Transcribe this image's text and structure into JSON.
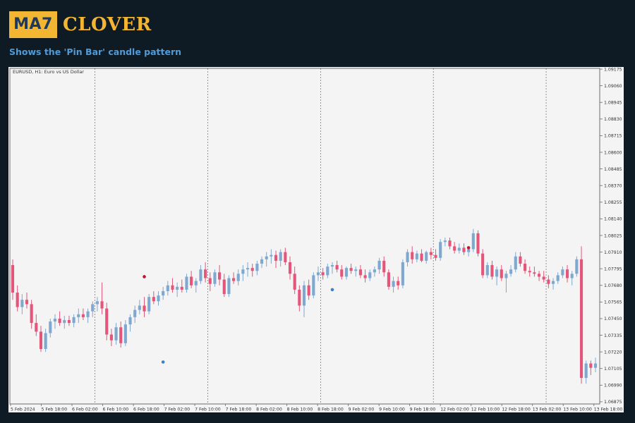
{
  "header": {
    "logo_badge": "MA7",
    "logo_word": "CLOVER"
  },
  "subtitle": "Shows the 'Pin Bar' candle pattern",
  "colors": {
    "background": "#0f1b24",
    "chart_bg": "#f4f4f4",
    "bull": "#7ea8cf",
    "bear": "#e3557a",
    "pin_top": "#c0152f",
    "pin_bottom": "#3b80c2",
    "grid": "#555555",
    "logo": "#f2b632",
    "subtitle": "#4f9bd8"
  },
  "chart_data": {
    "type": "candlestick",
    "symbol_label": "EURUSD, H1:  Euro vs US Dollar",
    "ylim": [
      1.0686,
      1.0918
    ],
    "y_ticks": [
      "1.09175",
      "1.09060",
      "1.08945",
      "1.08830",
      "1.08715",
      "1.08600",
      "1.08485",
      "1.08370",
      "1.08255",
      "1.08140",
      "1.08025",
      "1.07910",
      "1.07795",
      "1.07680",
      "1.07565",
      "1.07450",
      "1.07335",
      "1.07220",
      "1.07105",
      "1.06990",
      "1.06875"
    ],
    "x_ticks": [
      "5 Feb 2024",
      "5 Feb 18:00",
      "6 Feb 02:00",
      "6 Feb 10:00",
      "6 Feb 18:00",
      "7 Feb 02:00",
      "7 Feb 10:00",
      "7 Feb 18:00",
      "8 Feb 02:00",
      "8 Feb 10:00",
      "8 Feb 18:00",
      "9 Feb 02:00",
      "9 Feb 10:00",
      "9 Feb 18:00",
      "12 Feb 02:00",
      "12 Feb 10:00",
      "12 Feb 18:00",
      "13 Feb 02:00",
      "13 Feb 10:00",
      "13 Feb 18:00"
    ],
    "grid": "vertical dashed at day separators",
    "candles": [
      [
        1.0782,
        1.0786,
        1.0758,
        1.0763
      ],
      [
        1.0763,
        1.0768,
        1.075,
        1.0753
      ],
      [
        1.0753,
        1.0762,
        1.0748,
        1.0758
      ],
      [
        1.0758,
        1.0763,
        1.0752,
        1.0755
      ],
      [
        1.0755,
        1.0758,
        1.0738,
        1.0742
      ],
      [
        1.0742,
        1.0748,
        1.0733,
        1.0736
      ],
      [
        1.0736,
        1.074,
        1.0722,
        1.0724
      ],
      [
        1.0724,
        1.0738,
        1.0722,
        1.0735
      ],
      [
        1.0735,
        1.0745,
        1.0732,
        1.0743
      ],
      [
        1.0743,
        1.0748,
        1.0738,
        1.0745
      ],
      [
        1.0745,
        1.075,
        1.074,
        1.0742
      ],
      [
        1.0742,
        1.0747,
        1.0738,
        1.0744
      ],
      [
        1.0744,
        1.0747,
        1.074,
        1.0742
      ],
      [
        1.0742,
        1.0748,
        1.0739,
        1.0746
      ],
      [
        1.0746,
        1.0752,
        1.0742,
        1.0748
      ],
      [
        1.0748,
        1.0752,
        1.0744,
        1.0746
      ],
      [
        1.0746,
        1.0752,
        1.0742,
        1.075
      ],
      [
        1.075,
        1.0757,
        1.0746,
        1.0755
      ],
      [
        1.0755,
        1.076,
        1.075,
        1.0757
      ],
      [
        1.0757,
        1.077,
        1.0748,
        1.0752
      ],
      [
        1.0752,
        1.0756,
        1.073,
        1.0734
      ],
      [
        1.0734,
        1.0738,
        1.0726,
        1.073
      ],
      [
        1.073,
        1.0742,
        1.0727,
        1.0739
      ],
      [
        1.0739,
        1.0743,
        1.0725,
        1.0728
      ],
      [
        1.0728,
        1.0744,
        1.0726,
        1.0741
      ],
      [
        1.0741,
        1.0748,
        1.0736,
        1.0746
      ],
      [
        1.0746,
        1.0754,
        1.0742,
        1.0751
      ],
      [
        1.0751,
        1.0758,
        1.0748,
        1.0754
      ],
      [
        1.0754,
        1.076,
        1.0746,
        1.075
      ],
      [
        1.075,
        1.0762,
        1.0748,
        1.076
      ],
      [
        1.076,
        1.0764,
        1.0755,
        1.0757
      ],
      [
        1.0757,
        1.0764,
        1.0754,
        1.0761
      ],
      [
        1.0761,
        1.0767,
        1.0758,
        1.0764
      ],
      [
        1.0764,
        1.0771,
        1.0761,
        1.0768
      ],
      [
        1.0768,
        1.0773,
        1.0763,
        1.0765
      ],
      [
        1.0765,
        1.077,
        1.076,
        1.0767
      ],
      [
        1.0767,
        1.0772,
        1.0763,
        1.0765
      ],
      [
        1.0765,
        1.0776,
        1.0763,
        1.0774
      ],
      [
        1.0774,
        1.0778,
        1.0766,
        1.0768
      ],
      [
        1.0768,
        1.0773,
        1.0763,
        1.0771
      ],
      [
        1.0771,
        1.0782,
        1.0769,
        1.0779
      ],
      [
        1.0779,
        1.0784,
        1.077,
        1.0773
      ],
      [
        1.0773,
        1.0777,
        1.0764,
        1.0769
      ],
      [
        1.0769,
        1.0779,
        1.0767,
        1.0777
      ],
      [
        1.0777,
        1.0782,
        1.0768,
        1.0772
      ],
      [
        1.0772,
        1.0776,
        1.076,
        1.0762
      ],
      [
        1.0762,
        1.0775,
        1.076,
        1.0773
      ],
      [
        1.0773,
        1.0777,
        1.0769,
        1.0771
      ],
      [
        1.0771,
        1.0779,
        1.0768,
        1.0776
      ],
      [
        1.0776,
        1.0782,
        1.0771,
        1.0779
      ],
      [
        1.0779,
        1.0784,
        1.0774,
        1.078
      ],
      [
        1.078,
        1.0783,
        1.0774,
        1.0778
      ],
      [
        1.0778,
        1.0785,
        1.0775,
        1.0783
      ],
      [
        1.0783,
        1.0788,
        1.078,
        1.0786
      ],
      [
        1.0786,
        1.0791,
        1.0781,
        1.0788
      ],
      [
        1.0788,
        1.0793,
        1.0783,
        1.0789
      ],
      [
        1.0789,
        1.0792,
        1.078,
        1.0785
      ],
      [
        1.0785,
        1.0793,
        1.0781,
        1.0791
      ],
      [
        1.0791,
        1.0794,
        1.0782,
        1.0784
      ],
      [
        1.0784,
        1.0788,
        1.0772,
        1.0776
      ],
      [
        1.0776,
        1.0781,
        1.0762,
        1.0765
      ],
      [
        1.0765,
        1.0768,
        1.075,
        1.0754
      ],
      [
        1.0754,
        1.0771,
        1.0746,
        1.0768
      ],
      [
        1.0768,
        1.0772,
        1.0758,
        1.0761
      ],
      [
        1.0761,
        1.0777,
        1.0759,
        1.0775
      ],
      [
        1.0775,
        1.0781,
        1.0771,
        1.0777
      ],
      [
        1.0777,
        1.078,
        1.0772,
        1.0775
      ],
      [
        1.0775,
        1.0783,
        1.0773,
        1.0781
      ],
      [
        1.0781,
        1.0784,
        1.0776,
        1.0782
      ],
      [
        1.0782,
        1.0785,
        1.0777,
        1.0779
      ],
      [
        1.0779,
        1.0782,
        1.0772,
        1.0774
      ],
      [
        1.0774,
        1.0781,
        1.0772,
        1.078
      ],
      [
        1.078,
        1.0783,
        1.0776,
        1.0778
      ],
      [
        1.0778,
        1.0781,
        1.0774,
        1.0779
      ],
      [
        1.0779,
        1.0782,
        1.0773,
        1.0775
      ],
      [
        1.0775,
        1.0779,
        1.077,
        1.0773
      ],
      [
        1.0773,
        1.0779,
        1.0771,
        1.0777
      ],
      [
        1.0777,
        1.0781,
        1.0774,
        1.0779
      ],
      [
        1.0779,
        1.0787,
        1.0776,
        1.0785
      ],
      [
        1.0785,
        1.0788,
        1.0774,
        1.0777
      ],
      [
        1.0777,
        1.0779,
        1.0765,
        1.0767
      ],
      [
        1.0767,
        1.0774,
        1.0763,
        1.0771
      ],
      [
        1.0771,
        1.0774,
        1.0765,
        1.0768
      ],
      [
        1.0768,
        1.0786,
        1.0766,
        1.0784
      ],
      [
        1.0784,
        1.0793,
        1.0781,
        1.0791
      ],
      [
        1.0791,
        1.0795,
        1.0783,
        1.0786
      ],
      [
        1.0786,
        1.0792,
        1.0784,
        1.079
      ],
      [
        1.079,
        1.0793,
        1.0784,
        1.0785
      ],
      [
        1.0785,
        1.0792,
        1.0783,
        1.0791
      ],
      [
        1.0791,
        1.0794,
        1.0786,
        1.0789
      ],
      [
        1.0789,
        1.0793,
        1.0785,
        1.0787
      ],
      [
        1.0787,
        1.08,
        1.0785,
        1.0798
      ],
      [
        1.0798,
        1.0801,
        1.0795,
        1.0799
      ],
      [
        1.0799,
        1.0801,
        1.0793,
        1.0795
      ],
      [
        1.0795,
        1.0798,
        1.079,
        1.0792
      ],
      [
        1.0792,
        1.0797,
        1.079,
        1.0794
      ],
      [
        1.0794,
        1.0797,
        1.0789,
        1.0791
      ],
      [
        1.0791,
        1.0795,
        1.0788,
        1.0793
      ],
      [
        1.0793,
        1.0807,
        1.0791,
        1.0804
      ],
      [
        1.0804,
        1.0806,
        1.0788,
        1.079
      ],
      [
        1.079,
        1.0793,
        1.0773,
        1.0775
      ],
      [
        1.0775,
        1.0784,
        1.0773,
        1.0782
      ],
      [
        1.0782,
        1.0785,
        1.0772,
        1.0774
      ],
      [
        1.0774,
        1.0781,
        1.0768,
        1.0779
      ],
      [
        1.0779,
        1.0782,
        1.0771,
        1.0773
      ],
      [
        1.0773,
        1.0778,
        1.0763,
        1.0776
      ],
      [
        1.0776,
        1.0782,
        1.0774,
        1.0779
      ],
      [
        1.0779,
        1.0791,
        1.0777,
        1.0788
      ],
      [
        1.0788,
        1.0791,
        1.0781,
        1.0783
      ],
      [
        1.0783,
        1.0786,
        1.0776,
        1.0778
      ],
      [
        1.0778,
        1.0781,
        1.0774,
        1.0777
      ],
      [
        1.0777,
        1.0781,
        1.0774,
        1.0776
      ],
      [
        1.0776,
        1.0778,
        1.0771,
        1.0774
      ],
      [
        1.0774,
        1.0778,
        1.077,
        1.0772
      ],
      [
        1.0772,
        1.0775,
        1.0766,
        1.0769
      ],
      [
        1.0769,
        1.0773,
        1.0765,
        1.0771
      ],
      [
        1.0771,
        1.0777,
        1.0769,
        1.0775
      ],
      [
        1.0775,
        1.0781,
        1.0773,
        1.0779
      ],
      [
        1.0779,
        1.0782,
        1.077,
        1.0773
      ],
      [
        1.0773,
        1.0778,
        1.0768,
        1.0776
      ],
      [
        1.0776,
        1.0788,
        1.0774,
        1.0786
      ],
      [
        1.0786,
        1.0795,
        1.07,
        1.0704
      ],
      [
        1.0704,
        1.0716,
        1.07,
        1.0714
      ],
      [
        1.0714,
        1.0716,
        1.0706,
        1.0711
      ],
      [
        1.0711,
        1.0718,
        1.0708,
        1.0714
      ]
    ],
    "pin_bars": [
      {
        "candle": 28,
        "kind": "bearish",
        "price": 1.0774
      },
      {
        "candle": 32,
        "kind": "bullish",
        "price": 1.0715
      },
      {
        "candle": 68,
        "kind": "bullish",
        "price": 1.0765
      },
      {
        "candle": 97,
        "kind": "bearish",
        "price": 1.0794
      }
    ]
  }
}
